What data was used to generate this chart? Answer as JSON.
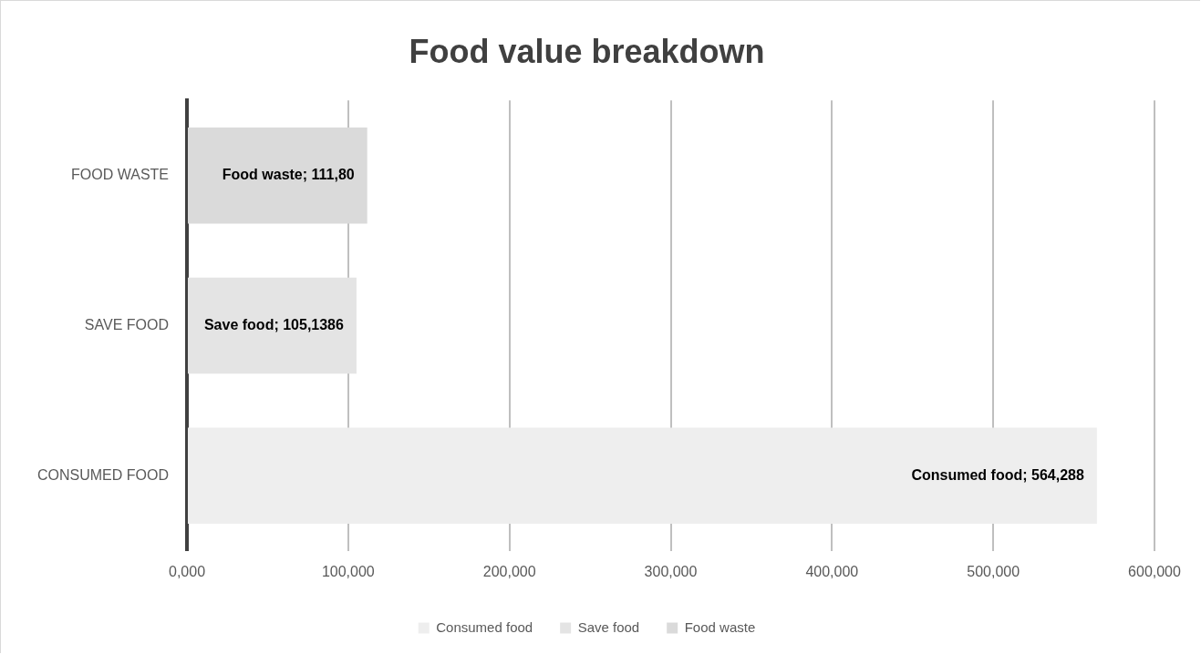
{
  "chart_data": {
    "type": "bar",
    "orientation": "horizontal",
    "stacked": true,
    "title": "Food value breakdown",
    "categories": [
      "FOOD WASTE",
      "SAVE FOOD",
      "CONSUMED FOOD"
    ],
    "series": [
      {
        "name": "Consumed food",
        "color": "#eeeeee",
        "values": [
          null,
          null,
          564.288
        ],
        "value_labels": [
          null,
          null,
          "Consumed food; 564,288"
        ]
      },
      {
        "name": "Save food",
        "color": "#e4e4e4",
        "values": [
          null,
          105.1386,
          null
        ],
        "value_labels": [
          null,
          "Save food; 105,1386",
          null
        ]
      },
      {
        "name": "Food waste",
        "color": "#dadada",
        "values": [
          111.8,
          null,
          null
        ],
        "value_labels": [
          "Food waste; 111,80",
          null,
          null
        ]
      }
    ],
    "xlim": [
      0,
      600
    ],
    "xticks": [
      {
        "value": 0,
        "label": "0,000"
      },
      {
        "value": 100,
        "label": "100,000"
      },
      {
        "value": 200,
        "label": "200,000"
      },
      {
        "value": 300,
        "label": "300,000"
      },
      {
        "value": 400,
        "label": "400,000"
      },
      {
        "value": 500,
        "label": "500,000"
      },
      {
        "value": 600,
        "label": "600,000"
      }
    ],
    "grid": "x",
    "legend": "bottom"
  }
}
